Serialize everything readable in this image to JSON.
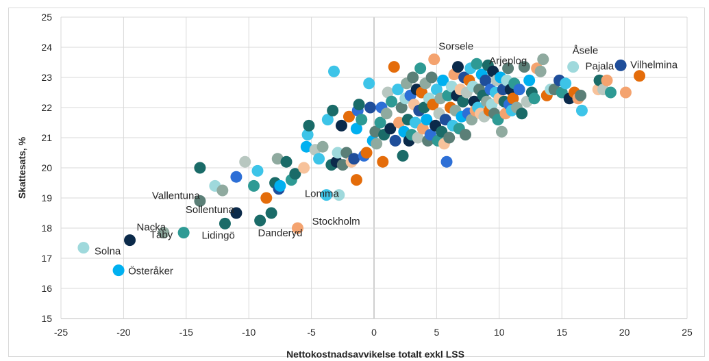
{
  "chart_data": {
    "type": "scatter",
    "title": "",
    "xlabel": "Nettokostnadsavvikelse totalt exkl LSS",
    "ylabel": "Skattesats, %",
    "xlim": [
      -25,
      25
    ],
    "ylim": [
      15,
      25
    ],
    "x_ticks": [
      -25,
      -20,
      -15,
      -10,
      -5,
      0,
      5,
      10,
      15,
      20,
      25
    ],
    "y_ticks": [
      15,
      16,
      17,
      18,
      19,
      20,
      21,
      22,
      23,
      24,
      25
    ],
    "grid": "vertical-and-horizontal",
    "legend": "none",
    "palette": [
      "#0b2a4a",
      "#1f4e9a",
      "#2d6fd6",
      "#00b0f0",
      "#3dc4e8",
      "#9fd9dc",
      "#2e9a94",
      "#1a6b68",
      "#5b7f77",
      "#8faa9f",
      "#b8c7c0",
      "#e46c0a",
      "#f4a36f",
      "#f7c29b"
    ],
    "annotations": [
      {
        "label": "Solna",
        "x": -23.2,
        "y": 17.35
      },
      {
        "label": "Nacka",
        "x": -19.5,
        "y": 17.6
      },
      {
        "label": "Täby",
        "x": -16.8,
        "y": 17.85
      },
      {
        "label": "Österåker",
        "x": -20.4,
        "y": 16.6
      },
      {
        "label": "Vallentuna",
        "x": -13.9,
        "y": 18.9
      },
      {
        "label": "Sollentuna",
        "x": -11.0,
        "y": 18.5
      },
      {
        "label": "Lidingö",
        "x": -11.9,
        "y": 18.15
      },
      {
        "label": "Danderyd",
        "x": -6.1,
        "y": 18.0
      },
      {
        "label": "Stockholm",
        "x": -5.6,
        "y": 18.3
      },
      {
        "label": "Lomma",
        "x": -2.8,
        "y": 19.1
      },
      {
        "label": "Sorsele",
        "x": 6.8,
        "y": 23.35
      },
      {
        "label": "Arjeplog",
        "x": 9.2,
        "y": 23.4
      },
      {
        "label": "Åsele",
        "x": 15.9,
        "y": 23.35
      },
      {
        "label": "Pajala",
        "x": 16.0,
        "y": 23.35
      },
      {
        "label": "Vilhelmina",
        "x": 19.7,
        "y": 23.4
      }
    ],
    "points": [
      [
        -23.2,
        17.35,
        5
      ],
      [
        -20.4,
        16.6,
        3
      ],
      [
        -19.5,
        17.6,
        0
      ],
      [
        -16.8,
        17.85,
        9
      ],
      [
        -15.2,
        17.85,
        6
      ],
      [
        -13.9,
        18.9,
        8
      ],
      [
        -13.9,
        20.0,
        7
      ],
      [
        -12.7,
        19.4,
        5
      ],
      [
        -12.1,
        19.25,
        9
      ],
      [
        -11.9,
        18.15,
        7
      ],
      [
        -11.0,
        18.5,
        0
      ],
      [
        -11.0,
        19.7,
        2
      ],
      [
        -10.3,
        20.2,
        10
      ],
      [
        -9.6,
        19.4,
        6
      ],
      [
        -9.3,
        19.9,
        4
      ],
      [
        -9.1,
        18.25,
        7
      ],
      [
        -8.6,
        19.0,
        11
      ],
      [
        -8.2,
        18.5,
        7
      ],
      [
        -7.9,
        19.5,
        7
      ],
      [
        -7.7,
        20.3,
        9
      ],
      [
        -7.6,
        19.3,
        1
      ],
      [
        -7.5,
        19.4,
        3
      ],
      [
        -7.0,
        20.2,
        7
      ],
      [
        -6.6,
        19.6,
        6
      ],
      [
        -6.3,
        19.8,
        7
      ],
      [
        -6.1,
        18.0,
        12
      ],
      [
        -5.6,
        20.0,
        13
      ],
      [
        -5.4,
        20.7,
        3
      ],
      [
        -5.3,
        21.1,
        4
      ],
      [
        -5.2,
        21.4,
        7
      ],
      [
        -4.7,
        20.6,
        10
      ],
      [
        -4.4,
        20.3,
        4
      ],
      [
        -4.1,
        20.7,
        9
      ],
      [
        -3.8,
        19.1,
        4
      ],
      [
        -3.7,
        21.6,
        4
      ],
      [
        -3.4,
        20.1,
        7
      ],
      [
        -3.3,
        21.9,
        7
      ],
      [
        -3.2,
        23.2,
        4
      ],
      [
        -3.0,
        20.2,
        0
      ],
      [
        -2.9,
        20.5,
        5
      ],
      [
        -2.8,
        19.1,
        5
      ],
      [
        -2.6,
        21.4,
        0
      ],
      [
        -2.5,
        20.1,
        8
      ],
      [
        -2.2,
        20.5,
        8
      ],
      [
        -2.0,
        21.7,
        11
      ],
      [
        -1.8,
        20.2,
        13
      ],
      [
        -1.6,
        20.3,
        1
      ],
      [
        -1.4,
        19.6,
        11
      ],
      [
        -1.4,
        21.3,
        3
      ],
      [
        -1.3,
        21.9,
        2
      ],
      [
        -1.2,
        22.1,
        7
      ],
      [
        -1.0,
        21.6,
        6
      ],
      [
        -0.8,
        20.4,
        2
      ],
      [
        -0.6,
        20.5,
        11
      ],
      [
        -0.4,
        22.8,
        4
      ],
      [
        -0.3,
        22.0,
        1
      ],
      [
        -0.1,
        20.9,
        3
      ],
      [
        0.1,
        21.2,
        8
      ],
      [
        0.2,
        20.8,
        9
      ],
      [
        0.5,
        21.5,
        6
      ],
      [
        0.6,
        22.0,
        2
      ],
      [
        0.7,
        20.2,
        11
      ],
      [
        0.8,
        21.1,
        7
      ],
      [
        1.0,
        21.8,
        9
      ],
      [
        1.1,
        22.5,
        10
      ],
      [
        1.3,
        21.3,
        0
      ],
      [
        1.4,
        22.2,
        6
      ],
      [
        1.6,
        23.35,
        11
      ],
      [
        1.7,
        20.9,
        1
      ],
      [
        1.9,
        22.6,
        4
      ],
      [
        2.0,
        21.5,
        12
      ],
      [
        2.2,
        22.0,
        8
      ],
      [
        2.3,
        20.4,
        7
      ],
      [
        2.4,
        21.2,
        3
      ],
      [
        2.5,
        22.3,
        5
      ],
      [
        2.6,
        22.8,
        9
      ],
      [
        2.7,
        21.6,
        7
      ],
      [
        2.8,
        20.9,
        0
      ],
      [
        2.9,
        22.4,
        2
      ],
      [
        3.0,
        21.1,
        6
      ],
      [
        3.1,
        23.0,
        8
      ],
      [
        3.2,
        22.1,
        13
      ],
      [
        3.3,
        21.5,
        4
      ],
      [
        3.4,
        22.6,
        0
      ],
      [
        3.5,
        21.0,
        10
      ],
      [
        3.6,
        21.9,
        1
      ],
      [
        3.7,
        23.3,
        6
      ],
      [
        3.8,
        22.5,
        11
      ],
      [
        3.9,
        21.3,
        12
      ],
      [
        4.0,
        22.0,
        7
      ],
      [
        4.1,
        22.8,
        9
      ],
      [
        4.2,
        21.6,
        3
      ],
      [
        4.3,
        20.9,
        8
      ],
      [
        4.4,
        22.3,
        5
      ],
      [
        4.5,
        21.1,
        2
      ],
      [
        4.6,
        23.0,
        8
      ],
      [
        4.7,
        22.1,
        11
      ],
      [
        4.8,
        23.6,
        12
      ],
      [
        4.9,
        21.4,
        0
      ],
      [
        5.0,
        22.6,
        4
      ],
      [
        5.1,
        20.9,
        6
      ],
      [
        5.2,
        21.8,
        10
      ],
      [
        5.3,
        22.3,
        9
      ],
      [
        5.4,
        21.2,
        7
      ],
      [
        5.5,
        22.9,
        3
      ],
      [
        5.6,
        20.8,
        13
      ],
      [
        5.7,
        21.6,
        1
      ],
      [
        5.8,
        20.2,
        2
      ],
      [
        5.9,
        22.4,
        6
      ],
      [
        6.0,
        21.0,
        8
      ],
      [
        6.1,
        22.0,
        11
      ],
      [
        6.2,
        22.7,
        5
      ],
      [
        6.3,
        21.4,
        4
      ],
      [
        6.4,
        23.1,
        12
      ],
      [
        6.5,
        21.9,
        9
      ],
      [
        6.6,
        22.4,
        0
      ],
      [
        6.7,
        23.35,
        0
      ],
      [
        6.8,
        21.3,
        6
      ],
      [
        6.9,
        22.6,
        13
      ],
      [
        7.0,
        21.7,
        3
      ],
      [
        7.1,
        22.2,
        7
      ],
      [
        7.2,
        23.0,
        1
      ],
      [
        7.3,
        21.1,
        8
      ],
      [
        7.4,
        22.5,
        10
      ],
      [
        7.5,
        21.8,
        2
      ],
      [
        7.6,
        22.9,
        11
      ],
      [
        7.7,
        23.3,
        4
      ],
      [
        7.8,
        21.6,
        9
      ],
      [
        7.9,
        22.7,
        5
      ],
      [
        8.0,
        22.2,
        0
      ],
      [
        8.1,
        21.9,
        12
      ],
      [
        8.2,
        23.45,
        6
      ],
      [
        8.3,
        22.0,
        4
      ],
      [
        8.4,
        22.6,
        8
      ],
      [
        8.5,
        21.8,
        13
      ],
      [
        8.6,
        23.1,
        3
      ],
      [
        8.7,
        22.4,
        7
      ],
      [
        8.8,
        21.7,
        10
      ],
      [
        8.9,
        22.9,
        1
      ],
      [
        9.0,
        22.2,
        9
      ],
      [
        9.1,
        23.4,
        7
      ],
      [
        9.2,
        21.9,
        11
      ],
      [
        9.3,
        22.6,
        2
      ],
      [
        9.4,
        22.1,
        5
      ],
      [
        9.5,
        23.2,
        0
      ],
      [
        9.6,
        21.8,
        8
      ],
      [
        9.7,
        22.5,
        4
      ],
      [
        9.8,
        22.9,
        10
      ],
      [
        9.9,
        21.6,
        6
      ],
      [
        10.0,
        22.3,
        13
      ],
      [
        10.1,
        23.0,
        3
      ],
      [
        10.2,
        21.2,
        9
      ],
      [
        10.3,
        22.6,
        1
      ],
      [
        10.4,
        22.2,
        7
      ],
      [
        10.5,
        21.8,
        12
      ],
      [
        10.6,
        22.9,
        5
      ],
      [
        10.7,
        23.3,
        8
      ],
      [
        10.8,
        22.1,
        2
      ],
      [
        10.9,
        22.6,
        0
      ],
      [
        11.0,
        21.9,
        4
      ],
      [
        11.1,
        22.3,
        11
      ],
      [
        11.2,
        22.8,
        6
      ],
      [
        11.4,
        22.0,
        9
      ],
      [
        11.6,
        22.6,
        2
      ],
      [
        11.8,
        21.8,
        7
      ],
      [
        12.0,
        23.35,
        8
      ],
      [
        12.2,
        22.2,
        10
      ],
      [
        12.4,
        22.9,
        3
      ],
      [
        12.6,
        22.5,
        7
      ],
      [
        12.8,
        22.3,
        6
      ],
      [
        13.0,
        23.3,
        12
      ],
      [
        13.3,
        23.2,
        9
      ],
      [
        13.5,
        23.6,
        9
      ],
      [
        13.8,
        22.4,
        11
      ],
      [
        14.1,
        22.6,
        5
      ],
      [
        14.4,
        22.6,
        8
      ],
      [
        14.8,
        22.9,
        1
      ],
      [
        15.0,
        22.5,
        6
      ],
      [
        15.3,
        22.8,
        4
      ],
      [
        15.6,
        22.3,
        0
      ],
      [
        15.9,
        23.35,
        5
      ],
      [
        16.0,
        22.5,
        11
      ],
      [
        16.3,
        22.3,
        12
      ],
      [
        16.5,
        22.4,
        8
      ],
      [
        16.6,
        21.9,
        4
      ],
      [
        17.9,
        22.6,
        13
      ],
      [
        18.0,
        22.9,
        7
      ],
      [
        18.3,
        22.6,
        10
      ],
      [
        18.6,
        22.9,
        12
      ],
      [
        18.9,
        22.5,
        6
      ],
      [
        19.7,
        23.4,
        1
      ],
      [
        20.1,
        22.5,
        12
      ],
      [
        21.2,
        23.05,
        11
      ]
    ]
  }
}
